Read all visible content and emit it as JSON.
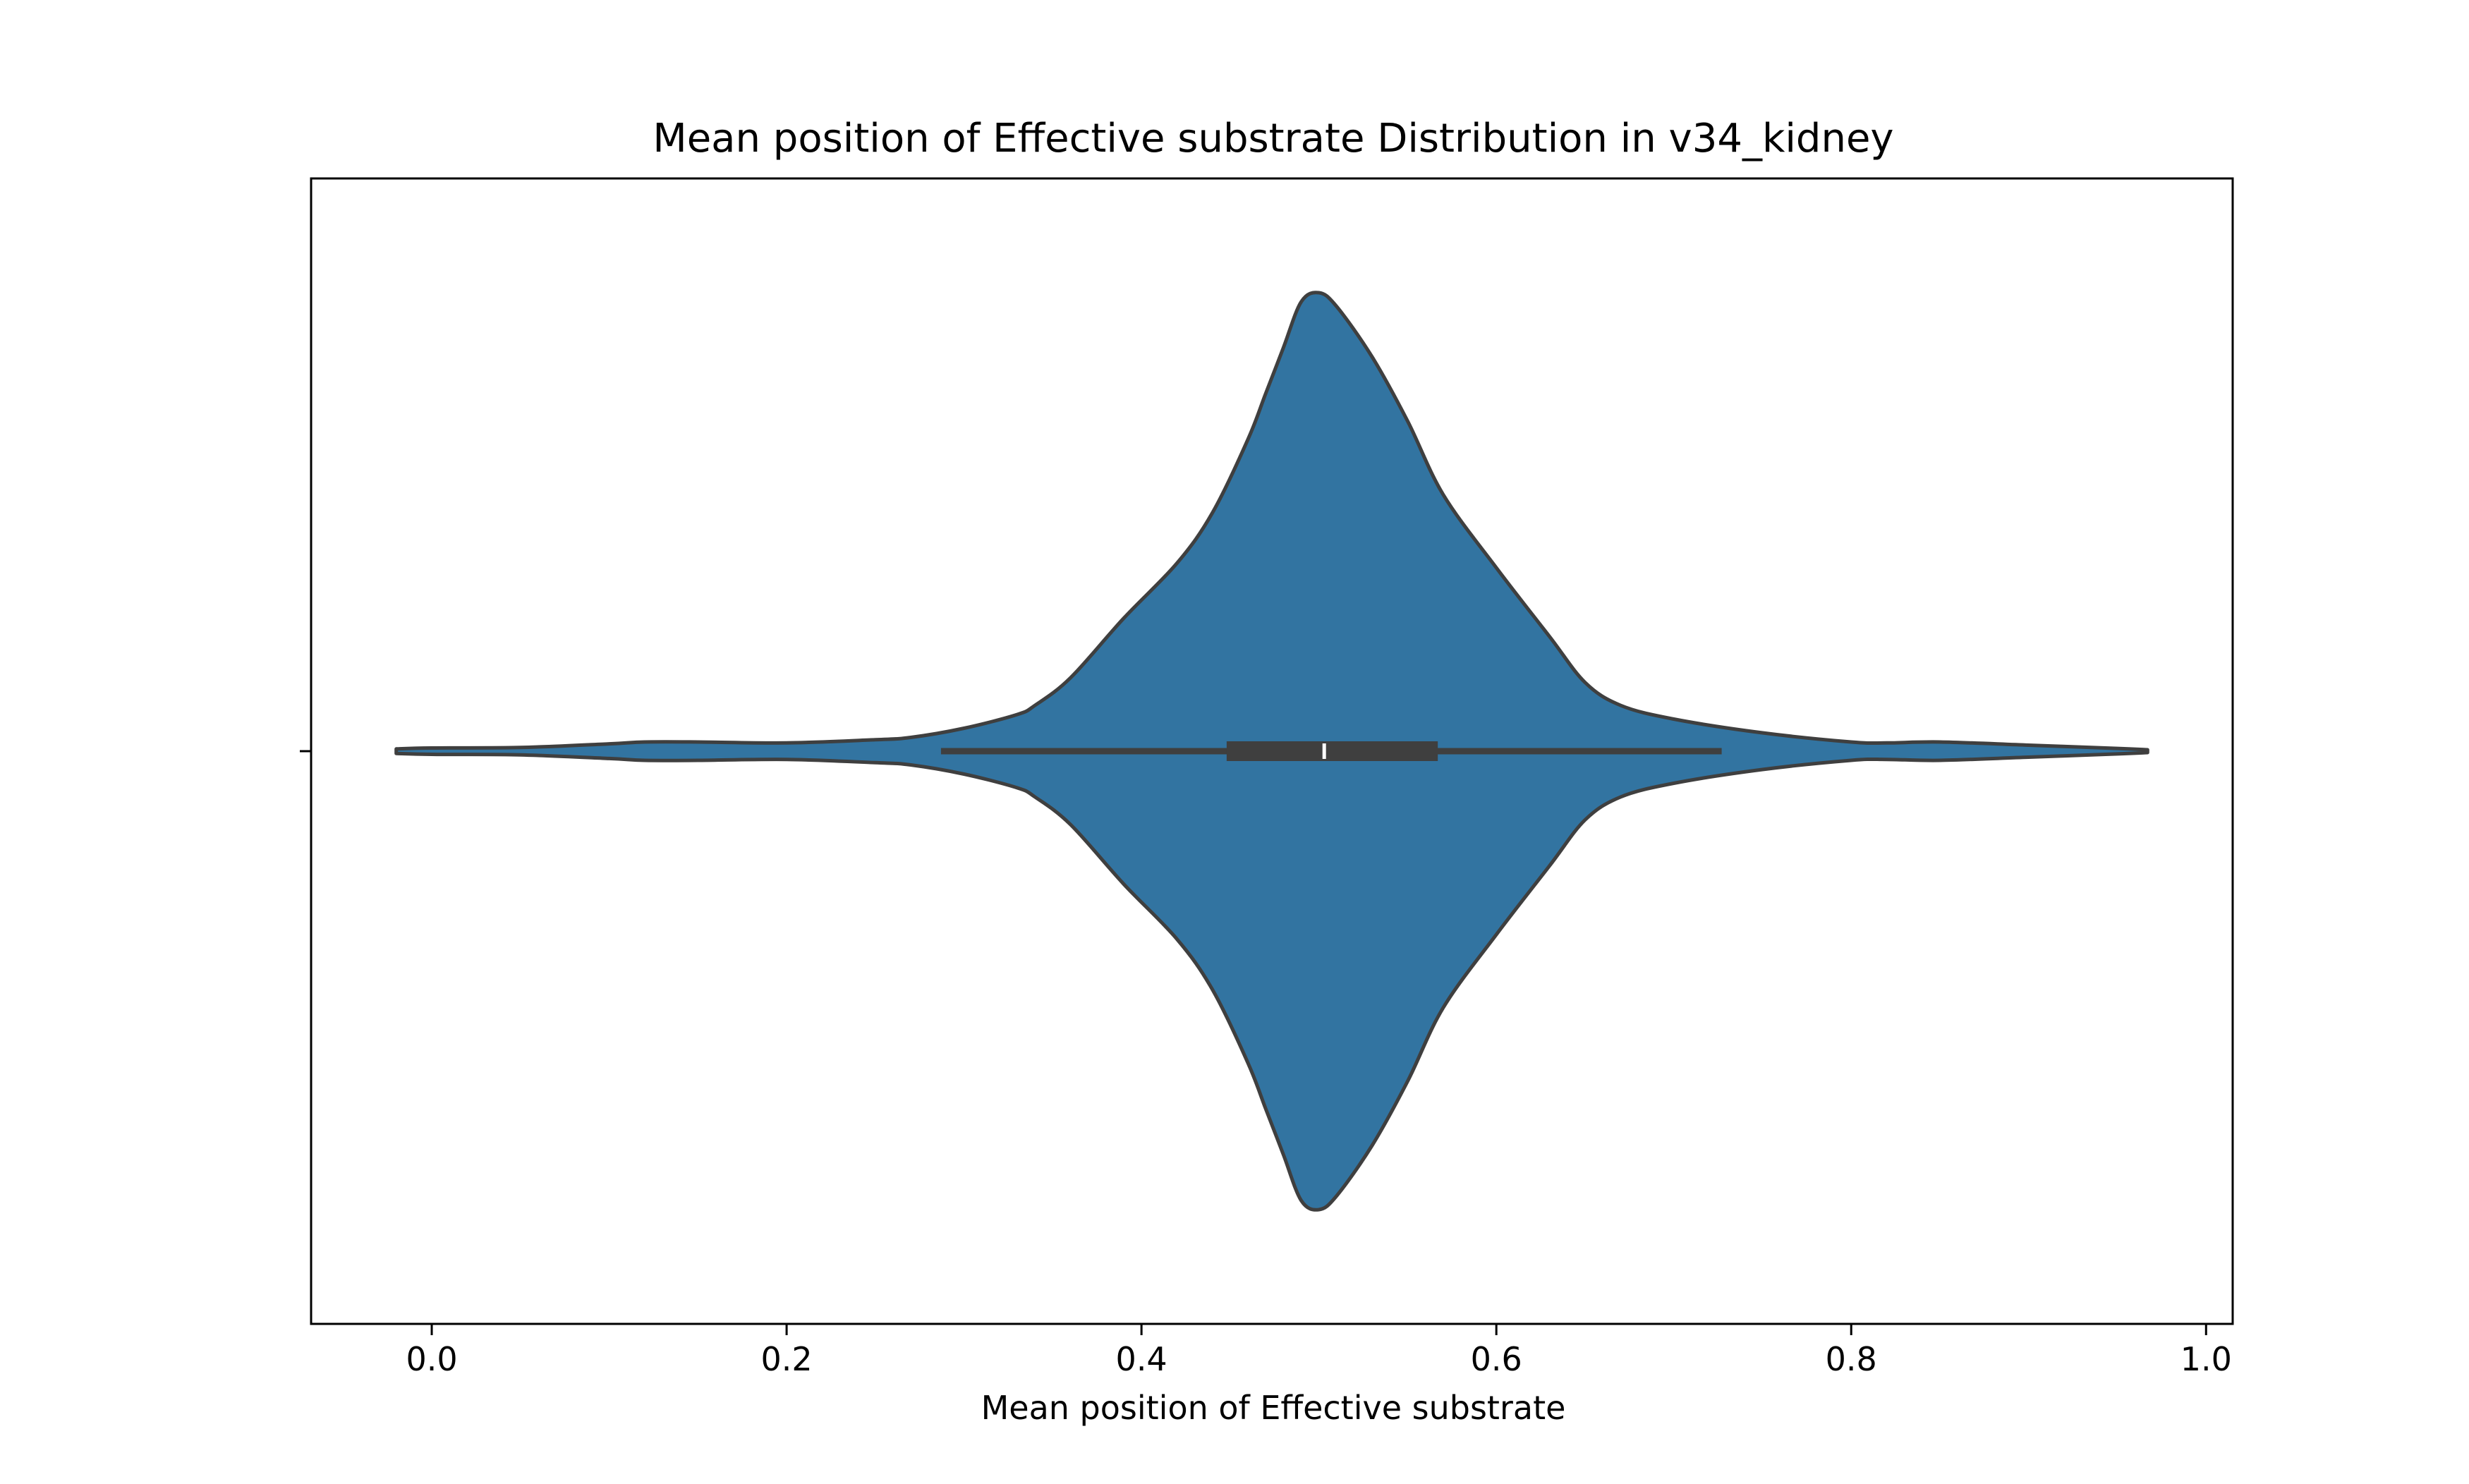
{
  "chart_data": {
    "type": "violin",
    "title": "Mean position of Effective substrate Distribution in v34_kidney",
    "xlabel": "Mean position of Effective substrate",
    "ylabel": "",
    "xlim": [
      -0.068,
      1.015
    ],
    "xticks": [
      0.0,
      0.2,
      0.4,
      0.6,
      0.8,
      1.0
    ],
    "xtick_labels": [
      "0.0",
      "0.2",
      "0.4",
      "0.6",
      "0.8",
      "1.0"
    ],
    "grid": false,
    "orientation": "horizontal",
    "series": [
      {
        "fill_color": "#3274a1",
        "edge_color": "#3f3f3f",
        "density_profile": {
          "x": [
            -0.02,
            0.0,
            0.05,
            0.1,
            0.12,
            0.15,
            0.2,
            0.25,
            0.27,
            0.3,
            0.33,
            0.34,
            0.36,
            0.39,
            0.42,
            0.44,
            0.46,
            0.47,
            0.48,
            0.49,
            0.5,
            0.51,
            0.53,
            0.55,
            0.57,
            0.6,
            0.63,
            0.65,
            0.67,
            0.7,
            0.75,
            0.8,
            0.82,
            0.85,
            0.9,
            0.95,
            0.967
          ],
          "half_width": [
            0.005,
            0.007,
            0.008,
            0.016,
            0.02,
            0.02,
            0.018,
            0.025,
            0.03,
            0.05,
            0.08,
            0.1,
            0.16,
            0.29,
            0.41,
            0.52,
            0.68,
            0.78,
            0.88,
            0.98,
            1.0,
            0.97,
            0.86,
            0.72,
            0.56,
            0.4,
            0.25,
            0.15,
            0.1,
            0.07,
            0.04,
            0.02,
            0.018,
            0.02,
            0.013,
            0.006,
            0.003
          ]
        },
        "box": {
          "whisker_low": 0.287,
          "q1": 0.448,
          "median": 0.503,
          "q3": 0.567,
          "whisker_high": 0.727
        }
      }
    ]
  }
}
